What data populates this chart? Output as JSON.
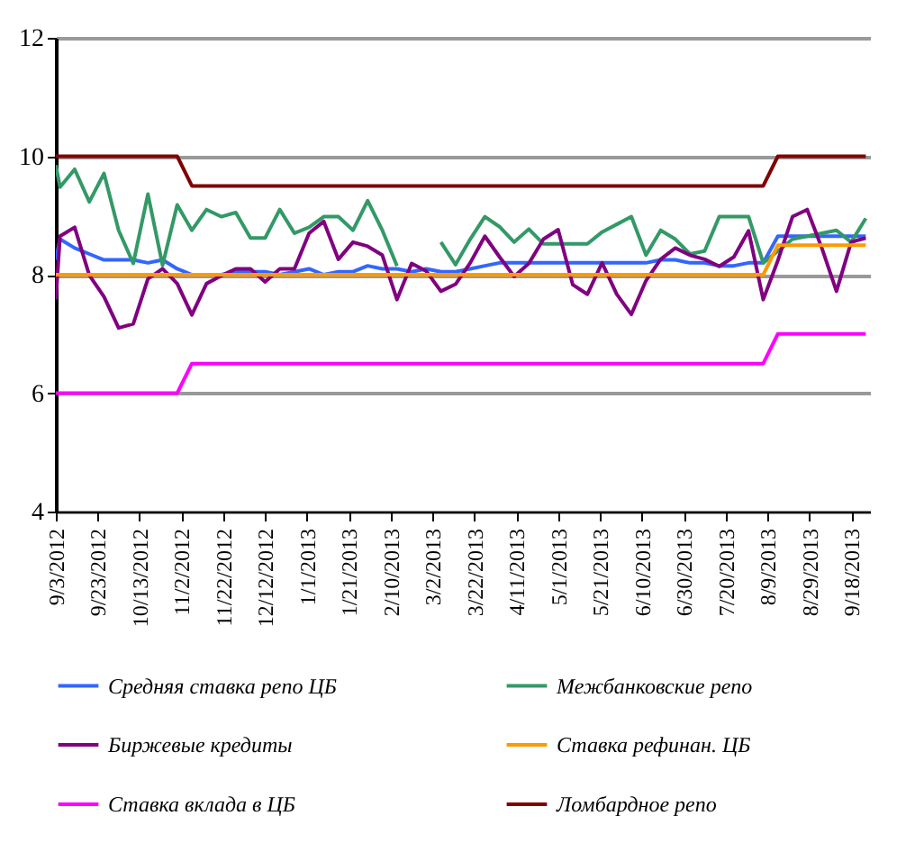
{
  "chart_data": {
    "type": "line",
    "x": [
      "2012-09-03",
      "2012-09-05",
      "2012-09-12",
      "2012-09-19",
      "2012-09-26",
      "2012-10-03",
      "2012-10-10",
      "2012-10-17",
      "2012-10-24",
      "2012-10-31",
      "2012-11-07",
      "2012-11-14",
      "2012-11-21",
      "2012-11-28",
      "2012-12-05",
      "2012-12-12",
      "2012-12-19",
      "2012-12-26",
      "2013-01-02",
      "2013-01-09",
      "2013-01-16",
      "2013-01-23",
      "2013-01-30",
      "2013-02-06",
      "2013-02-13",
      "2013-02-20",
      "2013-02-27",
      "2013-03-06",
      "2013-03-13",
      "2013-03-20",
      "2013-03-27",
      "2013-04-03",
      "2013-04-10",
      "2013-04-17",
      "2013-04-24",
      "2013-05-01",
      "2013-05-08",
      "2013-05-15",
      "2013-05-22",
      "2013-05-29",
      "2013-06-05",
      "2013-06-12",
      "2013-06-19",
      "2013-06-26",
      "2013-07-03",
      "2013-07-10",
      "2013-07-17",
      "2013-07-24",
      "2013-07-31",
      "2013-08-07",
      "2013-08-14",
      "2013-08-21",
      "2013-08-28",
      "2013-09-04",
      "2013-09-11",
      "2013-09-18",
      "2013-09-25"
    ],
    "series": [
      {
        "name": "Средняя ставка репо ЦБ",
        "color": "#3366ff",
        "values": [
          8.25,
          8.6,
          8.45,
          8.35,
          8.25,
          8.25,
          8.25,
          8.2,
          8.25,
          8.1,
          8.0,
          8.0,
          8.0,
          8.05,
          8.05,
          8.05,
          8.0,
          8.05,
          8.1,
          8.0,
          8.05,
          8.05,
          8.15,
          8.1,
          8.1,
          8.05,
          8.1,
          8.05,
          8.05,
          8.1,
          8.15,
          8.2,
          8.2,
          8.2,
          8.2,
          8.2,
          8.2,
          8.2,
          8.2,
          8.2,
          8.2,
          8.2,
          8.25,
          8.25,
          8.2,
          8.2,
          8.15,
          8.15,
          8.2,
          8.2,
          8.65,
          8.65,
          8.65,
          8.65,
          8.65,
          8.65,
          8.65
        ]
      },
      {
        "name": "Межбанковские репо",
        "color": "#339966",
        "values": [
          9.85,
          9.48,
          9.78,
          9.23,
          9.71,
          8.75,
          8.19,
          9.36,
          8.16,
          9.18,
          8.75,
          9.1,
          8.98,
          9.05,
          8.62,
          8.62,
          9.1,
          8.7,
          8.8,
          8.98,
          8.98,
          8.75,
          9.25,
          8.75,
          8.15,
          null,
          null,
          8.55,
          8.17,
          8.6,
          8.98,
          8.81,
          8.55,
          8.77,
          8.52,
          8.52,
          8.52,
          8.52,
          8.72,
          8.85,
          8.98,
          8.33,
          8.75,
          8.6,
          8.35,
          8.4,
          8.98,
          8.98,
          8.98,
          8.2,
          8.4,
          8.6,
          8.65,
          8.7,
          8.75,
          8.55,
          8.95
        ]
      },
      {
        "name": "Биржевые кредиты",
        "color": "#800080",
        "values": [
          7.58,
          8.65,
          8.8,
          7.99,
          7.63,
          7.1,
          7.17,
          7.93,
          8.1,
          7.85,
          7.32,
          7.85,
          7.98,
          8.1,
          8.1,
          7.88,
          8.1,
          8.1,
          8.7,
          8.9,
          8.26,
          8.55,
          8.48,
          8.33,
          7.58,
          8.19,
          8.06,
          7.72,
          7.84,
          8.2,
          8.65,
          8.3,
          7.97,
          8.19,
          8.6,
          8.76,
          7.83,
          7.67,
          8.2,
          7.67,
          7.33,
          7.9,
          8.26,
          8.45,
          8.33,
          8.26,
          8.14,
          8.3,
          8.74,
          7.58,
          8.24,
          8.98,
          9.1,
          8.45,
          7.72,
          8.55,
          8.62
        ]
      },
      {
        "name": "Ставка рефинан. ЦБ",
        "color": "#ff9900",
        "x": [
          "2012-09-03",
          "2012-10-31",
          "2012-11-07",
          "2013-08-07",
          "2013-08-14",
          "2013-09-25"
        ],
        "values": [
          8,
          8,
          8,
          8,
          8.5,
          8.5
        ]
      },
      {
        "name": "Ставка вклада в ЦБ",
        "color": "#ff00ff",
        "x": [
          "2012-09-03",
          "2012-10-31",
          "2012-11-07",
          "2013-08-07",
          "2013-08-14",
          "2013-09-25"
        ],
        "values": [
          6,
          6,
          6.5,
          6.5,
          7,
          7
        ]
      },
      {
        "name": "Ломбардное репо",
        "color": "#800000",
        "x": [
          "2012-09-03",
          "2012-10-31",
          "2012-11-07",
          "2013-08-07",
          "2013-08-14",
          "2013-09-25"
        ],
        "values": [
          10,
          10,
          9.5,
          9.5,
          10,
          10
        ]
      }
    ],
    "xlim": [
      "2012-09-03",
      "2013-09-27"
    ],
    "xticks": [
      {
        "value": "2012-09-03",
        "label": "9/3/2012"
      },
      {
        "value": "2012-09-23",
        "label": "9/23/2012"
      },
      {
        "value": "2012-10-13",
        "label": "10/13/2012"
      },
      {
        "value": "2012-11-02",
        "label": "11/2/2012"
      },
      {
        "value": "2012-11-22",
        "label": "11/22/2012"
      },
      {
        "value": "2012-12-12",
        "label": "12/12/2012"
      },
      {
        "value": "2013-01-01",
        "label": "1/1/2013"
      },
      {
        "value": "2013-01-21",
        "label": "1/21/2013"
      },
      {
        "value": "2013-02-10",
        "label": "2/10/2013"
      },
      {
        "value": "2013-03-02",
        "label": "3/2/2013"
      },
      {
        "value": "2013-03-22",
        "label": "3/22/2013"
      },
      {
        "value": "2013-04-11",
        "label": "4/11/2013"
      },
      {
        "value": "2013-05-01",
        "label": "5/1/2013"
      },
      {
        "value": "2013-05-21",
        "label": "5/21/2013"
      },
      {
        "value": "2013-06-10",
        "label": "6/10/2013"
      },
      {
        "value": "2013-06-30",
        "label": "6/30/2013"
      },
      {
        "value": "2013-07-20",
        "label": "7/20/2013"
      },
      {
        "value": "2013-08-09",
        "label": "8/9/2013"
      },
      {
        "value": "2013-08-29",
        "label": "8/29/2013"
      },
      {
        "value": "2013-09-18",
        "label": "9/18/2013"
      }
    ],
    "ylim": [
      4,
      12
    ],
    "yticks": [
      4,
      6,
      8,
      10,
      12
    ],
    "grid": "y",
    "legend": "bottom",
    "marker": "none",
    "line_style": "solid"
  }
}
